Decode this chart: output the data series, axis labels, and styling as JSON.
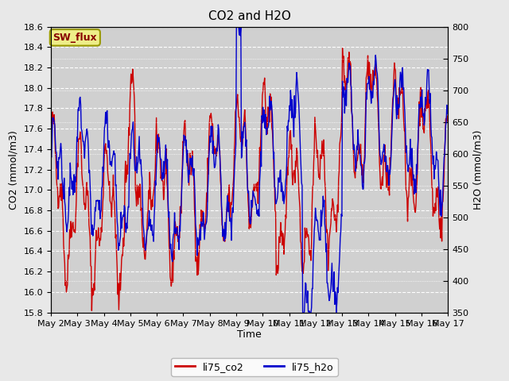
{
  "title": "CO2 and H2O",
  "xlabel": "Time",
  "ylabel_left": "CO2 (mmol/m3)",
  "ylabel_right": "H2O (mmol/m3)",
  "ylim_left": [
    15.8,
    18.6
  ],
  "ylim_right": [
    350,
    800
  ],
  "yticks_left": [
    15.8,
    16.0,
    16.2,
    16.4,
    16.6,
    16.8,
    17.0,
    17.2,
    17.4,
    17.6,
    17.8,
    18.0,
    18.2,
    18.4,
    18.6
  ],
  "yticks_right": [
    350,
    400,
    450,
    500,
    550,
    600,
    650,
    700,
    750,
    800
  ],
  "xtick_labels": [
    "May 2",
    "May 3",
    "May 4",
    "May 5",
    "May 6",
    "May 7",
    "May 8",
    "May 9",
    "May 10",
    "May 11",
    "May 12",
    "May 13",
    "May 14",
    "May 15",
    "May 16",
    "May 17"
  ],
  "legend_label": "SW_flux",
  "line1_label": "li75_co2",
  "line2_label": "li75_h2o",
  "line1_color": "#cc0000",
  "line2_color": "#0000cc",
  "bg_color": "#d0d0d0",
  "fig_bg_color": "#e8e8e8",
  "grid_color": "white",
  "title_fontsize": 11,
  "label_fontsize": 9,
  "tick_fontsize": 8,
  "legend_fontsize": 9,
  "linewidth": 1.0
}
